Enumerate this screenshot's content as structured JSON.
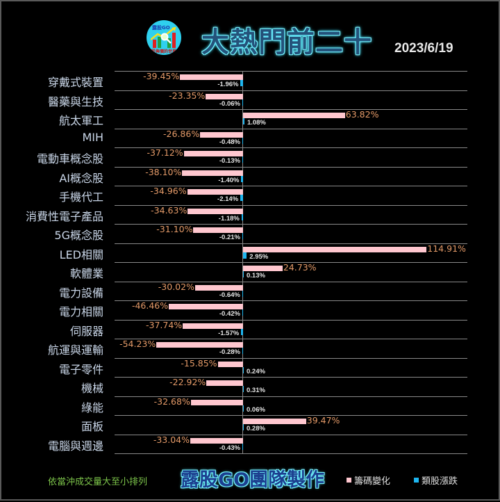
{
  "header": {
    "logo_text": "露股GO",
    "logo_subtext": "股與價的世界",
    "title": "大熱門前二十",
    "date": "2023/6/19"
  },
  "footer": {
    "sort_note": "依當沖成交量大至小排列",
    "credit": "露股GO團隊製作"
  },
  "legend": [
    {
      "label": "籌碼變化",
      "color": "#ffc7cf"
    },
    {
      "label": "類股漲跌",
      "color": "#1eb6f0"
    }
  ],
  "colors": {
    "chip_change": "#ffc7cf",
    "sector_change": "#1eb6f0",
    "chip_label": "#e49a68",
    "sector_label": "#e6e6e6",
    "background": "#000000"
  },
  "chart_data": {
    "type": "bar",
    "orientation": "horizontal",
    "title": "大熱門前二十",
    "subtitle": "2023/6/19",
    "note": "依當沖成交量大至小排列",
    "categories": [
      "穿戴式裝置",
      "醫藥與生技",
      "航太軍工",
      "MIH",
      "電動車概念股",
      "AI概念股",
      "手機代工",
      "消費性電子產品",
      "5G概念股",
      "LED相關",
      "軟體業",
      "電力設備",
      "電力相關",
      "伺服器",
      "航運與運輸",
      "電子零件",
      "機械",
      "綠能",
      "面板",
      "電腦與週邊"
    ],
    "series": [
      {
        "name": "籌碼變化",
        "unit": "%",
        "values": [
          -39.45,
          -23.35,
          63.82,
          -26.86,
          -37.12,
          -38.1,
          -34.96,
          -34.63,
          -31.1,
          114.91,
          24.73,
          -30.02,
          -46.46,
          -37.74,
          -54.23,
          -15.85,
          -22.92,
          -32.68,
          39.47,
          -33.04
        ],
        "labels": [
          "-39.45%",
          "-23.35%",
          "63.82%",
          "-26.86%",
          "-37.12%",
          "-38.10%",
          "-34.96%",
          "-34.63%",
          "-31.10%",
          "114.91%",
          "24.73%",
          "-30.02%",
          "-46.46%",
          "-37.74%",
          "-54.23%",
          "-15.85%",
          "-22.92%",
          "-32.68%",
          "39.47%",
          "-33.04%"
        ]
      },
      {
        "name": "類股漲跌",
        "unit": "%",
        "values": [
          -1.96,
          -0.06,
          1.08,
          -0.48,
          -0.13,
          -1.4,
          -2.14,
          -1.18,
          -0.21,
          2.95,
          0.13,
          -0.64,
          -0.42,
          -1.57,
          -0.28,
          0.24,
          0.31,
          0.06,
          0.28,
          -0.43
        ],
        "labels": [
          "-1.96%",
          "-0.06%",
          "1.08%",
          "-0.48%",
          "-0.13%",
          "-1.40%",
          "-2.14%",
          "-1.18%",
          "-0.21%",
          "2.95%",
          "0.13%",
          "-0.64%",
          "-0.42%",
          "-1.57%",
          "-0.28%",
          "0.24%",
          "0.31%",
          "0.06%",
          "0.28%",
          "-0.43%"
        ]
      }
    ],
    "xlabel": "",
    "ylabel": "",
    "grid": true,
    "legend_position": "bottom-right"
  }
}
